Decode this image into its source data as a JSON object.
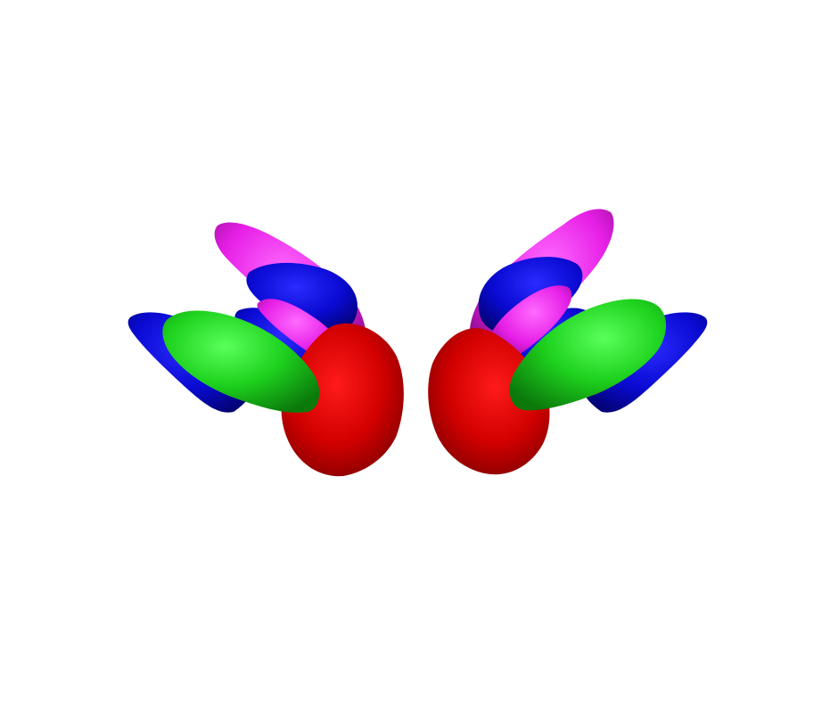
{
  "scene": {
    "background": "#ffffff",
    "structure_colors": {
      "red": "#d10000",
      "green": "#1ed21e",
      "blue": "#0a0ad2",
      "magenta": "#e61ee6"
    },
    "hemispheres": [
      "left",
      "right"
    ]
  }
}
